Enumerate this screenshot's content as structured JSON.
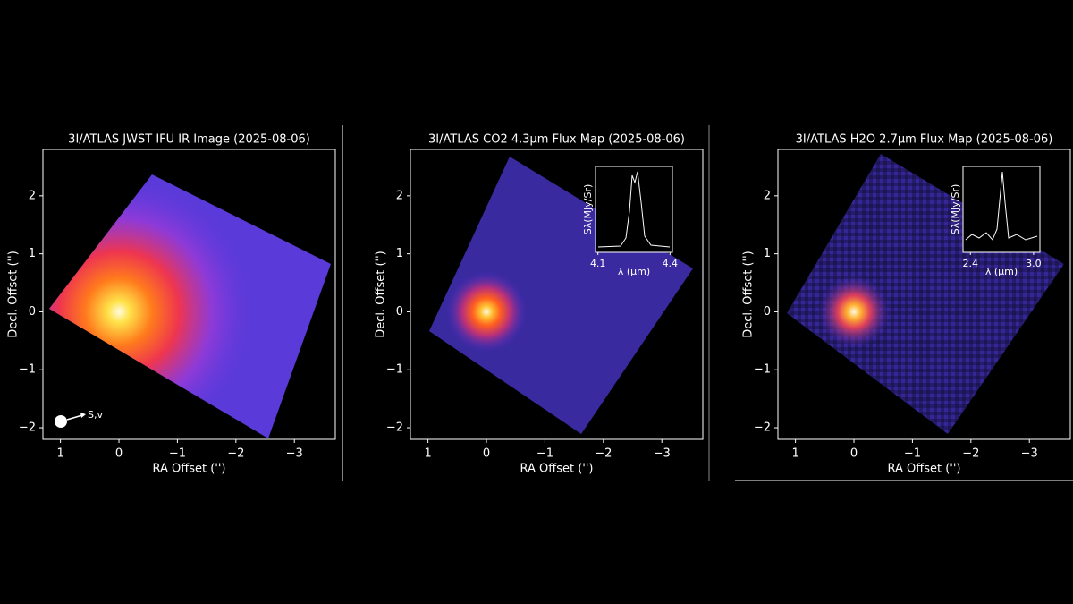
{
  "chart_data": [
    {
      "type": "image",
      "title": "3I/ATLAS JWST IFU IR Image (2025-08-06)",
      "x_label": "RA Offset ('')",
      "y_label": "Decl. Offset ('')",
      "xlim": [
        1.3,
        -3.7
      ],
      "ylim": [
        -2.2,
        2.8
      ],
      "xticks": [
        1,
        0,
        {
          "value": -1,
          "label": "−1"
        },
        {
          "value": -2,
          "label": "−2"
        },
        {
          "value": -3,
          "label": "−3"
        }
      ],
      "yticks": [
        {
          "value": -2,
          "label": "−2"
        },
        {
          "value": -1,
          "label": "−1"
        },
        0,
        1,
        2
      ],
      "annotation": "S,v"
    },
    {
      "type": "image",
      "title": "3I/ATLAS CO2 4.3µm Flux Map (2025-08-06)",
      "x_label": "RA Offset ('')",
      "y_label": "Decl. Offset ('')",
      "xlim": [
        1.3,
        -3.7
      ],
      "ylim": [
        -2.2,
        2.8
      ],
      "xticks": [
        1,
        0,
        {
          "value": -1,
          "label": "−1"
        },
        {
          "value": -2,
          "label": "−2"
        },
        {
          "value": -3,
          "label": "−3"
        }
      ],
      "yticks": [
        {
          "value": -2,
          "label": "−2"
        },
        {
          "value": -1,
          "label": "−1"
        },
        0,
        1,
        2
      ],
      "inset": {
        "type": "line",
        "x_label": "λ (µm)",
        "y_label": "Sλ(MJy/Sr)",
        "xlim": [
          4.09,
          4.41
        ],
        "xticks": [
          4.1,
          4.4
        ]
      }
    },
    {
      "type": "image",
      "title": "3I/ATLAS H2O 2.7µm Flux Map (2025-08-06)",
      "x_label": "RA Offset ('')",
      "y_label": "Decl. Offset ('')",
      "xlim": [
        1.3,
        -3.7
      ],
      "ylim": [
        -2.2,
        2.8
      ],
      "xticks": [
        1,
        0,
        {
          "value": -1,
          "label": "−1"
        },
        {
          "value": -2,
          "label": "−2"
        },
        {
          "value": -3,
          "label": "−3"
        }
      ],
      "yticks": [
        {
          "value": -2,
          "label": "−2"
        },
        {
          "value": -1,
          "label": "−1"
        },
        0,
        1,
        2
      ],
      "inset": {
        "type": "line",
        "x_label": "λ (µm)",
        "y_label": "Sλ(MJy/Sr)",
        "xlim": [
          2.33,
          3.06
        ],
        "xticks": [
          2.4,
          {
            "value": 3,
            "label": "3.0"
          }
        ]
      }
    }
  ]
}
